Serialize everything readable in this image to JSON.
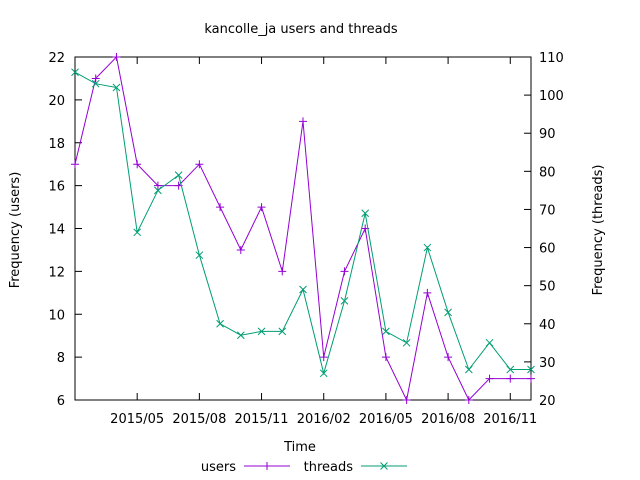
{
  "chart_data": {
    "type": "line",
    "title": "kancolle_ja users and threads",
    "xlabel": "Time",
    "ylabel": "Frequency (users)",
    "y2label": "Frequency (threads)",
    "x": [
      "2015/02",
      "2015/03",
      "2015/04",
      "2015/05",
      "2015/06",
      "2015/07",
      "2015/08",
      "2015/09",
      "2015/10",
      "2015/11",
      "2015/12",
      "2016/01",
      "2016/02",
      "2016/03",
      "2016/04",
      "2016/05",
      "2016/06",
      "2016/07",
      "2016/08",
      "2016/09",
      "2016/10",
      "2016/11",
      "2016/12"
    ],
    "xlim": [
      "2015/02",
      "2016/12"
    ],
    "xticks": [
      "2015/05",
      "2015/08",
      "2015/11",
      "2016/02",
      "2016/05",
      "2016/08",
      "2016/11"
    ],
    "ylim": [
      6,
      22
    ],
    "yticks": [
      6,
      8,
      10,
      12,
      14,
      16,
      18,
      20,
      22
    ],
    "y2lim": [
      20,
      110
    ],
    "y2ticks": [
      20,
      30,
      40,
      50,
      60,
      70,
      80,
      90,
      100,
      110
    ],
    "grid": false,
    "legend_position": "bottom",
    "series": [
      {
        "name": "users",
        "axis": "left",
        "marker": "+",
        "color": "#9400d3",
        "values": [
          17,
          21,
          22,
          17,
          16,
          16,
          17,
          15,
          13,
          15,
          12,
          19,
          8,
          12,
          14,
          8,
          6,
          11,
          8,
          6,
          7,
          7,
          7
        ]
      },
      {
        "name": "threads",
        "axis": "right",
        "marker": "x",
        "color": "#009e73",
        "values": [
          106,
          103,
          102,
          64,
          75,
          79,
          58,
          40,
          37,
          38,
          38,
          49,
          27,
          46,
          69,
          38,
          35,
          60,
          43,
          28,
          35,
          28,
          28
        ]
      }
    ]
  }
}
